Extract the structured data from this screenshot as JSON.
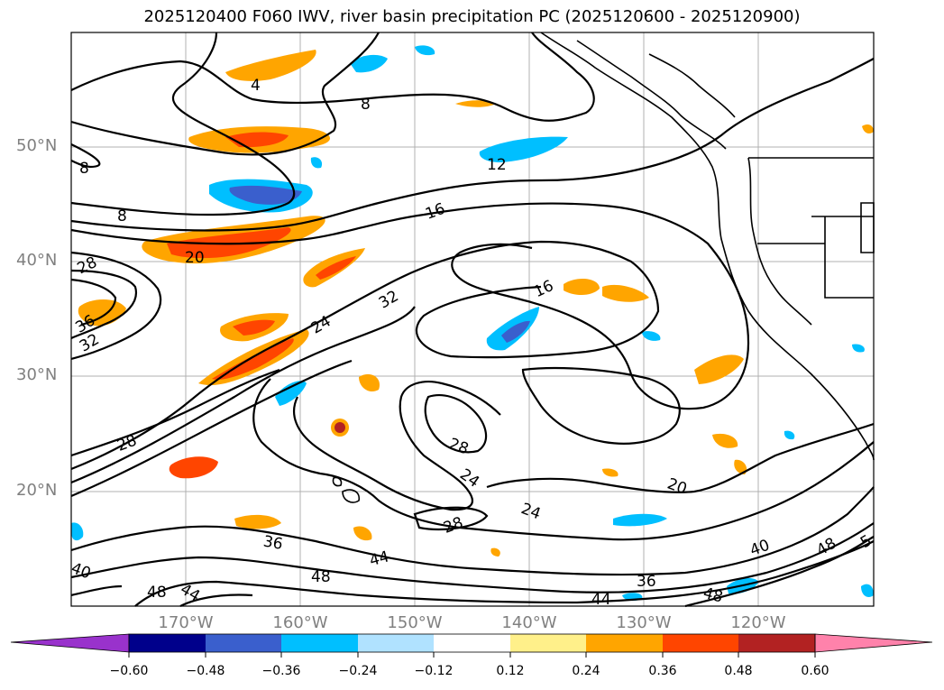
{
  "title": "2025120400 F060 IWV, river basin precipitation PC (2025120600 - 2025120900)",
  "lat_labels": [
    "50°N",
    "40°N",
    "30°N",
    "20°N"
  ],
  "lon_labels": [
    "170°W",
    "160°W",
    "150°W",
    "140°W",
    "130°W",
    "120°W"
  ],
  "iwv_contour_labels": [
    "4",
    "8",
    "8",
    "8",
    "12",
    "16",
    "16",
    "20",
    "20",
    "24",
    "24",
    "24",
    "28",
    "28",
    "28",
    "28",
    "32",
    "32",
    "36",
    "36",
    "36",
    "40",
    "40",
    "44",
    "44",
    "44",
    "48",
    "48",
    "48",
    "48",
    "5"
  ],
  "colorbar": {
    "ticks": [
      "−0.60",
      "−0.48",
      "−0.36",
      "−0.24",
      "−0.12",
      "0.12",
      "0.24",
      "0.36",
      "0.48",
      "0.60"
    ],
    "colors": [
      "#9932cc",
      "#00008b",
      "#3a5fcd",
      "#00bfff",
      "#b0e2ff",
      "#ffffff",
      "#fff08a",
      "#ffa500",
      "#ff4500",
      "#b22222",
      "#ff82ab"
    ]
  },
  "colors": {
    "land_lines": "#000000",
    "grid": "#b0b0b0",
    "orange": "#ffa500",
    "red_orange": "#ff4500",
    "dark_red": "#b22222",
    "light_yellow": "#fff08a",
    "sky_blue": "#00bfff",
    "medium_blue": "#3a5fcd"
  }
}
